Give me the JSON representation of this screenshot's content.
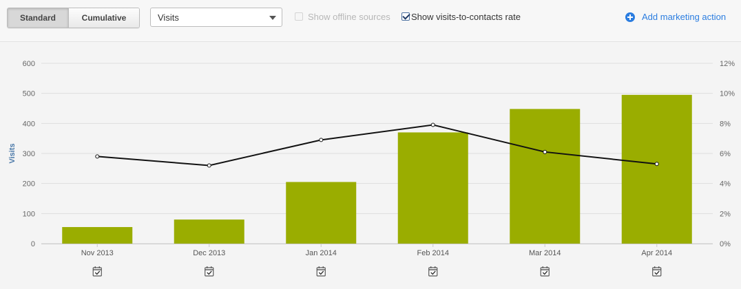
{
  "toolbar": {
    "standard_label": "Standard",
    "cumulative_label": "Cumulative",
    "active_mode": "Standard",
    "metric_select_value": "Visits",
    "offline_label": "Show offline sources",
    "offline_checked": false,
    "rate_label": "Show visits-to-contacts rate",
    "rate_checked": true,
    "add_action_label": "Add marketing action",
    "add_action_icon": "plus-circle-icon",
    "accent_color": "#2b7de0"
  },
  "chart_data": {
    "type": "bar",
    "categories": [
      "Nov 2013",
      "Dec 2013",
      "Jan 2014",
      "Feb 2014",
      "Mar 2014",
      "Apr 2014"
    ],
    "series": [
      {
        "name": "Visits",
        "type": "bar",
        "axis": "left",
        "color": "#9aad00",
        "values": [
          55,
          80,
          205,
          370,
          448,
          495
        ]
      },
      {
        "type": "line",
        "axis": "right",
        "color": "#111111",
        "values": [
          5.8,
          5.2,
          6.9,
          7.9,
          6.1,
          5.3
        ]
      }
    ],
    "ylabel": "Visits",
    "ylim": [
      0,
      600
    ],
    "yticks": [
      "0",
      "100",
      "200",
      "300",
      "400",
      "500",
      "600"
    ],
    "y2lim": [
      0,
      12
    ],
    "y2ticks": [
      "0%",
      "2%",
      "4%",
      "6%",
      "8%",
      "10%",
      "12%"
    ],
    "grid": true,
    "marker_icon": "calendar-check-icon"
  }
}
